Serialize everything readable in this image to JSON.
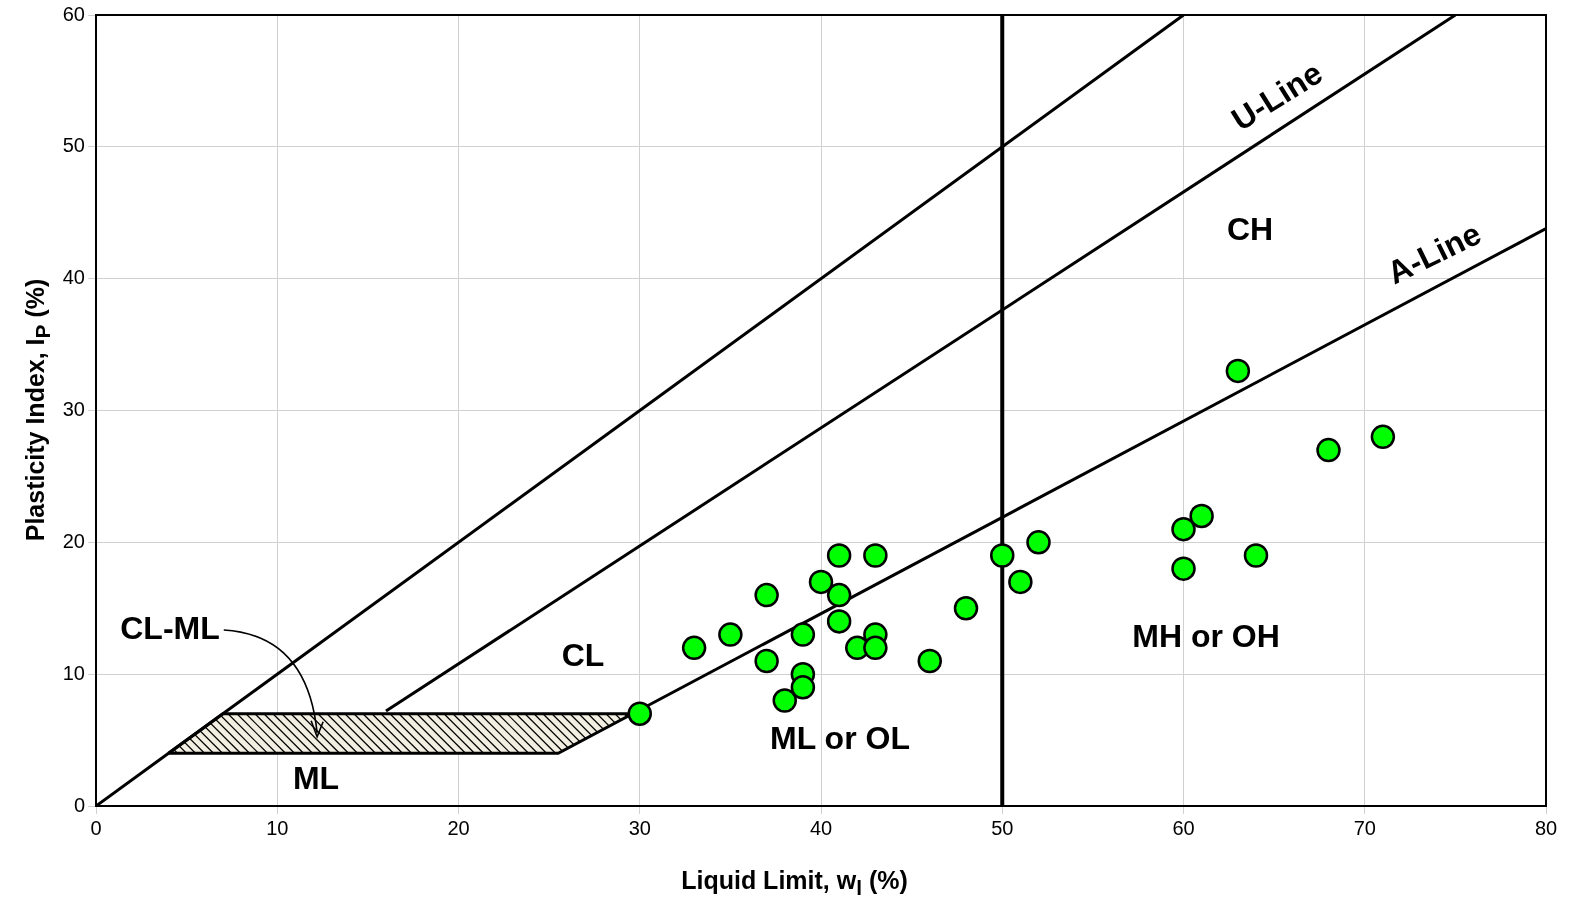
{
  "chart_data": {
    "type": "scatter",
    "xlabel": "Liquid Limit, w$_{l}$ (%)",
    "ylabel": "Plasticity Index, I$_{P}$ (%)",
    "xlim": [
      0,
      80
    ],
    "ylim": [
      0,
      60
    ],
    "xticks": [
      0,
      10,
      20,
      30,
      40,
      50,
      60,
      70,
      80
    ],
    "yticks": [
      0,
      10,
      20,
      30,
      40,
      50,
      60
    ],
    "grid": true,
    "legend": false,
    "x": [
      30,
      33,
      35,
      37,
      37,
      38,
      39,
      39,
      39,
      40,
      41,
      41,
      41,
      42,
      43,
      43,
      43,
      46,
      48,
      50,
      51,
      52,
      60,
      60,
      61,
      63,
      64,
      68,
      71
    ],
    "series": [
      {
        "type": "area",
        "color": "#f3eee2",
        "marker": "none",
        "x": [
          4,
          7,
          29.6,
          25.5,
          4
        ],
        "values": [
          4,
          7,
          7,
          4,
          4
        ]
      },
      {
        "type": "line",
        "color": "#000000",
        "marker": "none",
        "x": [
          0,
          60
        ],
        "values": [
          0,
          60
        ]
      },
      {
        "type": "line",
        "color": "#000000",
        "marker": "none",
        "x": [
          16,
          75
        ],
        "values": [
          7.2,
          60
        ]
      },
      {
        "type": "line",
        "color": "#000000",
        "marker": "none",
        "x": [
          29.6,
          80
        ],
        "values": [
          7,
          43.8
        ]
      },
      {
        "color": "#00ff00",
        "marker": "circle",
        "values": [
          7,
          12,
          13,
          16,
          11,
          8,
          13,
          10,
          9,
          17,
          19,
          16,
          14,
          12,
          19,
          13,
          12,
          11,
          15,
          19,
          17,
          20,
          21,
          18,
          22,
          33,
          19,
          27,
          28
        ]
      }
    ],
    "ref_lines": [
      {
        "axis": "x",
        "value": 50,
        "color": "#000000"
      }
    ],
    "annotations": [
      "U-Line",
      "A-Line",
      "CH",
      "CL",
      {
        "text": "CL-ML",
        "x": 12.2,
        "y": 5.4
      },
      "ML",
      "ML or OL",
      "MH or OH"
    ]
  }
}
